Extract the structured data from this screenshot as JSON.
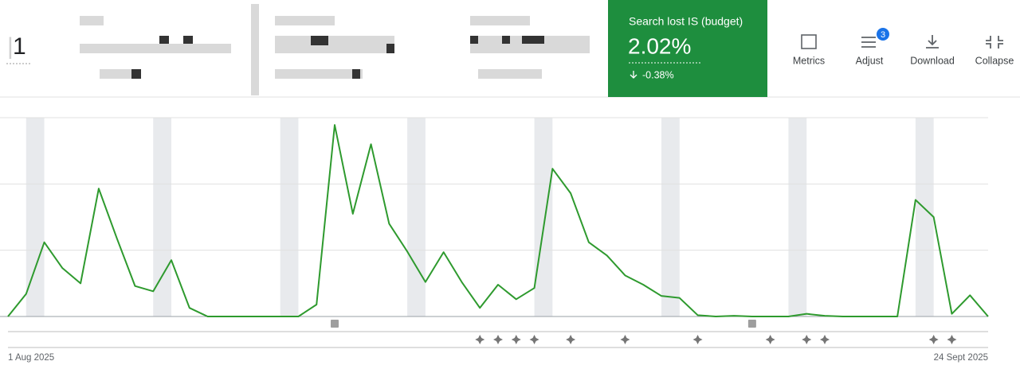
{
  "header": {
    "partial_value": "1"
  },
  "scorecard": {
    "title": "Search lost IS (budget)",
    "value": "2.02%",
    "change": "-0.38%"
  },
  "toolbar": {
    "metrics": "Metrics",
    "adjust": "Adjust",
    "adjust_badge": "3",
    "download": "Download",
    "collapse": "Collapse"
  },
  "chart_data": {
    "type": "line",
    "color": "#2e9a2e",
    "categories": [
      "1 Aug 2025",
      null,
      null,
      null,
      null,
      null,
      null,
      null,
      null,
      null,
      null,
      null,
      null,
      null,
      null,
      null,
      null,
      null,
      null,
      null,
      null,
      null,
      null,
      null,
      null,
      null,
      null,
      null,
      null,
      null,
      null,
      null,
      null,
      null,
      null,
      null,
      null,
      null,
      null,
      null,
      null,
      null,
      null,
      null,
      null,
      null,
      null,
      null,
      null,
      null,
      null,
      null,
      null,
      null,
      "24 Sept 2025"
    ],
    "values": [
      0,
      0.34,
      1.12,
      0.73,
      0.5,
      1.93,
      1.18,
      0.46,
      0.38,
      0.85,
      0.13,
      0,
      0,
      0,
      0,
      0,
      0,
      0.18,
      2.89,
      1.55,
      2.6,
      1.4,
      0.98,
      0.52,
      0.97,
      0.52,
      0.13,
      0.48,
      0.26,
      0.43,
      2.23,
      1.86,
      1.12,
      0.92,
      0.62,
      0.48,
      0.31,
      0.28,
      0.02,
      0,
      0.01,
      0,
      0,
      0,
      0.04,
      0.01,
      0,
      0,
      0,
      0,
      1.76,
      1.5,
      0.04,
      0.32,
      0
    ],
    "ylim": [
      0,
      3
    ],
    "yticks": [
      0,
      1,
      2,
      3
    ],
    "grid": true
  }
}
